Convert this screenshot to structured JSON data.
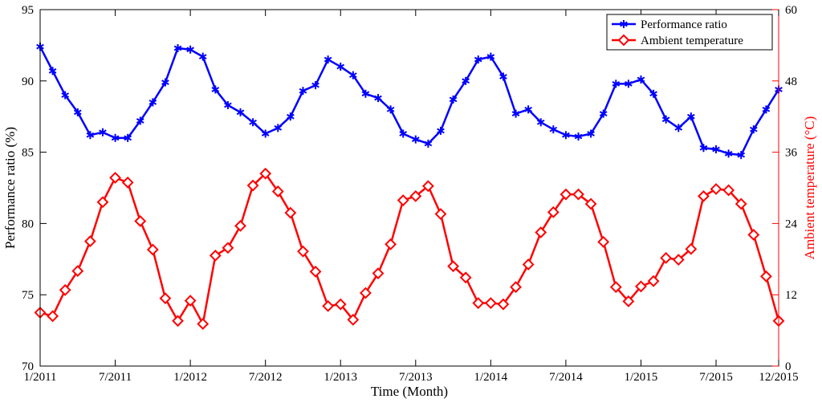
{
  "chart_data": {
    "type": "line",
    "xlabel": "Time (Month)",
    "ylabel_left": "Performance ratio (%)",
    "ylabel_right": "Ambient temperature (°C)",
    "x_tick_labels": [
      "1/2011",
      "7/2011",
      "1/2012",
      "7/2012",
      "1/2013",
      "7/2013",
      "1/2014",
      "7/2014",
      "1/2015",
      "7/2015",
      "12/2015"
    ],
    "x_tick_month_index": [
      0,
      6,
      12,
      18,
      24,
      30,
      36,
      42,
      48,
      54,
      59
    ],
    "ylim_left": [
      70,
      95
    ],
    "yticks_left": [
      "70",
      "75",
      "80",
      "85",
      "90",
      "95"
    ],
    "ylim_right": [
      0,
      60
    ],
    "yticks_right": [
      "0",
      "12",
      "24",
      "36",
      "48",
      "60"
    ],
    "grid": false,
    "legend_position": "top-right",
    "colors": {
      "performance": "#0000ff",
      "temperature": "#ff0000",
      "right_axis": "#ff0000",
      "axis": "#000000"
    },
    "series": [
      {
        "name": "Performance ratio",
        "axis": "left",
        "marker": "asterisk",
        "values": [
          92.4,
          90.7,
          89.0,
          87.8,
          86.2,
          86.4,
          86.0,
          86.0,
          87.2,
          88.5,
          89.9,
          92.3,
          92.2,
          91.7,
          89.4,
          88.3,
          87.8,
          87.1,
          86.3,
          86.7,
          87.5,
          89.3,
          89.7,
          91.5,
          91.0,
          90.4,
          89.1,
          88.8,
          88.0,
          86.3,
          85.9,
          85.6,
          86.5,
          88.7,
          90.0,
          91.5,
          91.7,
          90.3,
          87.7,
          88.0,
          87.1,
          86.6,
          86.2,
          86.1,
          86.3,
          87.7,
          89.8,
          89.8,
          90.1,
          89.1,
          87.3,
          86.7,
          87.5,
          85.3,
          85.2,
          84.9,
          84.8,
          86.6,
          88.0,
          89.4
        ]
      },
      {
        "name": "Ambient temperature",
        "axis": "right",
        "marker": "diamond",
        "values": [
          9.0,
          8.4,
          12.8,
          16.0,
          21.0,
          27.6,
          31.7,
          30.9,
          24.4,
          19.6,
          11.4,
          7.6,
          11.0,
          7.1,
          18.6,
          19.9,
          23.6,
          30.4,
          32.4,
          29.4,
          25.8,
          19.3,
          15.9,
          10.1,
          10.4,
          7.8,
          12.3,
          15.6,
          20.5,
          27.9,
          28.6,
          30.3,
          25.6,
          16.8,
          14.9,
          10.6,
          10.6,
          10.4,
          13.3,
          17.1,
          22.5,
          25.9,
          28.9,
          28.9,
          27.3,
          20.9,
          13.3,
          10.9,
          13.4,
          14.3,
          18.2,
          17.9,
          19.7,
          28.6,
          29.8,
          29.6,
          27.3,
          22.1,
          15.1,
          7.6
        ]
      }
    ]
  }
}
